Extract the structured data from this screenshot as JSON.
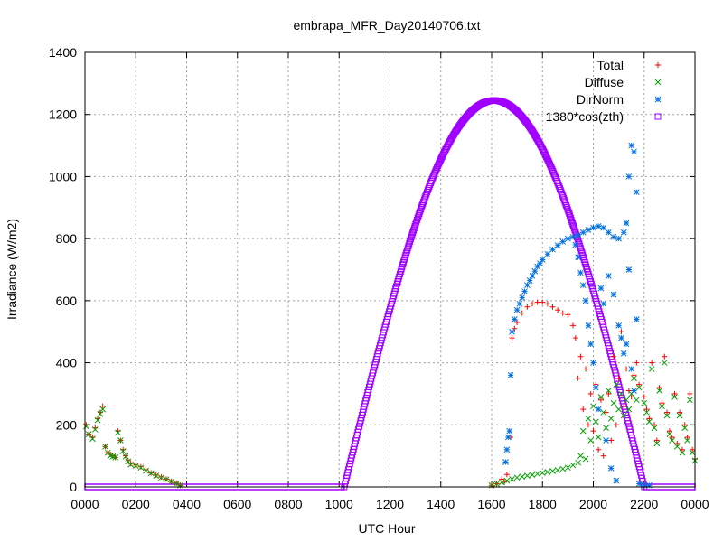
{
  "chart_data": {
    "type": "scatter",
    "title": "embrapa_MFR_Day20140706.txt",
    "xlabel": "UTC Hour",
    "ylabel": "Irradiance (W/m2)",
    "xlim": [
      0,
      24
    ],
    "ylim": [
      0,
      1400
    ],
    "xticks": [
      {
        "value": 0,
        "label": "0000"
      },
      {
        "value": 2,
        "label": "0200"
      },
      {
        "value": 4,
        "label": "0400"
      },
      {
        "value": 6,
        "label": "0600"
      },
      {
        "value": 8,
        "label": "0800"
      },
      {
        "value": 10,
        "label": "1000"
      },
      {
        "value": 12,
        "label": "1200"
      },
      {
        "value": 14,
        "label": "1400"
      },
      {
        "value": 16,
        "label": "1600"
      },
      {
        "value": 18,
        "label": "1800"
      },
      {
        "value": 20,
        "label": "2000"
      },
      {
        "value": 22,
        "label": "2200"
      },
      {
        "value": 24,
        "label": "0000"
      }
    ],
    "yticks": [
      0,
      200,
      400,
      600,
      800,
      1000,
      1200,
      1400
    ],
    "grid": true,
    "legend_position": "top-right",
    "series": [
      {
        "name": "Total",
        "marker": "plus",
        "color": "#ff0000",
        "points": [
          [
            0.05,
            200
          ],
          [
            0.15,
            170
          ],
          [
            0.3,
            160
          ],
          [
            0.4,
            190
          ],
          [
            0.5,
            220
          ],
          [
            0.6,
            240
          ],
          [
            0.7,
            260
          ],
          [
            0.8,
            130
          ],
          [
            0.9,
            110
          ],
          [
            1.0,
            105
          ],
          [
            1.1,
            100
          ],
          [
            1.2,
            95
          ],
          [
            1.3,
            180
          ],
          [
            1.4,
            150
          ],
          [
            1.5,
            120
          ],
          [
            1.6,
            100
          ],
          [
            1.7,
            85
          ],
          [
            1.8,
            75
          ],
          [
            2.0,
            70
          ],
          [
            2.2,
            65
          ],
          [
            2.4,
            55
          ],
          [
            2.6,
            45
          ],
          [
            2.8,
            38
          ],
          [
            3.0,
            32
          ],
          [
            3.2,
            25
          ],
          [
            3.4,
            18
          ],
          [
            3.6,
            12
          ],
          [
            3.75,
            5
          ],
          [
            16.0,
            5
          ],
          [
            16.2,
            10
          ],
          [
            16.4,
            25
          ],
          [
            16.5,
            15
          ],
          [
            16.6,
            40
          ],
          [
            16.75,
            160
          ],
          [
            16.8,
            480
          ],
          [
            16.9,
            510
          ],
          [
            17.0,
            530
          ],
          [
            17.2,
            560
          ],
          [
            17.4,
            580
          ],
          [
            17.6,
            590
          ],
          [
            17.8,
            595
          ],
          [
            18.0,
            595
          ],
          [
            18.2,
            590
          ],
          [
            18.4,
            580
          ],
          [
            18.6,
            570
          ],
          [
            18.8,
            560
          ],
          [
            19.0,
            555
          ],
          [
            19.2,
            520
          ],
          [
            19.3,
            480
          ],
          [
            19.4,
            350
          ],
          [
            19.5,
            420
          ],
          [
            19.6,
            250
          ],
          [
            19.7,
            380
          ],
          [
            19.8,
            200
          ],
          [
            19.9,
            300
          ],
          [
            20.0,
            180
          ],
          [
            20.1,
            330
          ],
          [
            20.2,
            120
          ],
          [
            20.3,
            280
          ],
          [
            20.4,
            100
          ],
          [
            20.5,
            240
          ],
          [
            20.6,
            300
          ],
          [
            20.7,
            150
          ],
          [
            20.8,
            420
          ],
          [
            20.9,
            200
          ],
          [
            21.0,
            350
          ],
          [
            21.1,
            500
          ],
          [
            21.2,
            260
          ],
          [
            21.3,
            380
          ],
          [
            21.4,
            310
          ],
          [
            21.5,
            290
          ],
          [
            21.6,
            360
          ],
          [
            21.7,
            400
          ],
          [
            21.8,
            330
          ],
          [
            22.0,
            290
          ],
          [
            22.1,
            250
          ],
          [
            22.2,
            220
          ],
          [
            22.3,
            400
          ],
          [
            22.4,
            200
          ],
          [
            22.5,
            150
          ],
          [
            22.6,
            320
          ],
          [
            22.7,
            270
          ],
          [
            22.8,
            420
          ],
          [
            22.9,
            240
          ],
          [
            23.0,
            180
          ],
          [
            23.1,
            160
          ],
          [
            23.2,
            300
          ],
          [
            23.3,
            140
          ],
          [
            23.4,
            240
          ],
          [
            23.5,
            120
          ],
          [
            23.6,
            200
          ],
          [
            23.7,
            160
          ],
          [
            23.8,
            300
          ],
          [
            23.9,
            120
          ],
          [
            24.0,
            90
          ]
        ]
      },
      {
        "name": "Diffuse",
        "marker": "cross",
        "color": "#00a000",
        "points": [
          [
            0.05,
            195
          ],
          [
            0.15,
            170
          ],
          [
            0.3,
            155
          ],
          [
            0.4,
            185
          ],
          [
            0.5,
            215
          ],
          [
            0.6,
            235
          ],
          [
            0.7,
            250
          ],
          [
            0.8,
            130
          ],
          [
            0.9,
            110
          ],
          [
            1.0,
            100
          ],
          [
            1.1,
            98
          ],
          [
            1.2,
            95
          ],
          [
            1.3,
            175
          ],
          [
            1.4,
            150
          ],
          [
            1.5,
            115
          ],
          [
            1.6,
            98
          ],
          [
            1.7,
            82
          ],
          [
            1.8,
            72
          ],
          [
            2.0,
            68
          ],
          [
            2.2,
            62
          ],
          [
            2.4,
            52
          ],
          [
            2.6,
            44
          ],
          [
            2.8,
            36
          ],
          [
            3.0,
            30
          ],
          [
            3.2,
            24
          ],
          [
            3.4,
            17
          ],
          [
            3.6,
            11
          ],
          [
            3.75,
            5
          ],
          [
            16.0,
            5
          ],
          [
            16.2,
            10
          ],
          [
            16.4,
            15
          ],
          [
            16.6,
            20
          ],
          [
            16.8,
            25
          ],
          [
            17.0,
            30
          ],
          [
            17.2,
            33
          ],
          [
            17.4,
            36
          ],
          [
            17.6,
            39
          ],
          [
            17.8,
            42
          ],
          [
            18.0,
            45
          ],
          [
            18.2,
            48
          ],
          [
            18.4,
            51
          ],
          [
            18.6,
            54
          ],
          [
            18.8,
            58
          ],
          [
            19.0,
            62
          ],
          [
            19.2,
            70
          ],
          [
            19.4,
            78
          ],
          [
            19.5,
            100
          ],
          [
            19.6,
            180
          ],
          [
            19.7,
            90
          ],
          [
            19.8,
            220
          ],
          [
            19.9,
            150
          ],
          [
            20.0,
            260
          ],
          [
            20.1,
            210
          ],
          [
            20.2,
            160
          ],
          [
            20.3,
            290
          ],
          [
            20.4,
            240
          ],
          [
            20.5,
            190
          ],
          [
            20.6,
            310
          ],
          [
            20.7,
            220
          ],
          [
            20.8,
            270
          ],
          [
            20.9,
            330
          ],
          [
            21.0,
            250
          ],
          [
            21.1,
            300
          ],
          [
            21.2,
            230
          ],
          [
            21.3,
            280
          ],
          [
            21.4,
            250
          ],
          [
            21.5,
            300
          ],
          [
            21.6,
            350
          ],
          [
            21.7,
            280
          ],
          [
            21.8,
            320
          ],
          [
            22.0,
            270
          ],
          [
            22.1,
            240
          ],
          [
            22.2,
            210
          ],
          [
            22.3,
            380
          ],
          [
            22.4,
            190
          ],
          [
            22.5,
            140
          ],
          [
            22.6,
            310
          ],
          [
            22.7,
            260
          ],
          [
            22.8,
            400
          ],
          [
            22.9,
            230
          ],
          [
            23.0,
            170
          ],
          [
            23.1,
            150
          ],
          [
            23.2,
            290
          ],
          [
            23.3,
            130
          ],
          [
            23.4,
            230
          ],
          [
            23.5,
            110
          ],
          [
            23.6,
            190
          ],
          [
            23.7,
            150
          ],
          [
            23.8,
            280
          ],
          [
            23.9,
            110
          ],
          [
            24.0,
            85
          ]
        ]
      },
      {
        "name": "DirNorm",
        "marker": "star",
        "color": "#0070e0",
        "points": [
          [
            16.55,
            80
          ],
          [
            16.6,
            120
          ],
          [
            16.65,
            160
          ],
          [
            16.7,
            180
          ],
          [
            16.75,
            360
          ],
          [
            16.8,
            500
          ],
          [
            16.9,
            540
          ],
          [
            17.0,
            570
          ],
          [
            17.1,
            590
          ],
          [
            17.2,
            610
          ],
          [
            17.3,
            630
          ],
          [
            17.4,
            650
          ],
          [
            17.5,
            665
          ],
          [
            17.6,
            680
          ],
          [
            17.7,
            695
          ],
          [
            17.8,
            710
          ],
          [
            17.9,
            720
          ],
          [
            18.0,
            732
          ],
          [
            18.2,
            750
          ],
          [
            18.4,
            765
          ],
          [
            18.6,
            778
          ],
          [
            18.8,
            790
          ],
          [
            19.0,
            800
          ],
          [
            19.2,
            805
          ],
          [
            19.4,
            810
          ],
          [
            19.6,
            820
          ],
          [
            19.8,
            828
          ],
          [
            20.0,
            835
          ],
          [
            20.2,
            840
          ],
          [
            20.4,
            835
          ],
          [
            20.6,
            820
          ],
          [
            20.8,
            805
          ],
          [
            21.0,
            800
          ],
          [
            21.2,
            820
          ],
          [
            21.3,
            850
          ],
          [
            21.4,
            1000
          ],
          [
            21.5,
            1100
          ],
          [
            21.6,
            1080
          ],
          [
            21.7,
            950
          ],
          [
            19.3,
            780
          ],
          [
            19.4,
            740
          ],
          [
            19.5,
            690
          ],
          [
            19.6,
            650
          ],
          [
            19.7,
            600
          ],
          [
            19.8,
            520
          ],
          [
            19.9,
            460
          ],
          [
            20.0,
            400
          ],
          [
            20.1,
            320
          ],
          [
            20.2,
            250
          ],
          [
            20.3,
            640
          ],
          [
            20.4,
            590
          ],
          [
            20.5,
            150
          ],
          [
            20.6,
            680
          ],
          [
            20.7,
            60
          ],
          [
            20.8,
            620
          ],
          [
            20.9,
            20
          ],
          [
            21.0,
            520
          ],
          [
            21.1,
            480
          ],
          [
            21.2,
            430
          ],
          [
            21.3,
            460
          ],
          [
            21.4,
            700
          ],
          [
            21.5,
            380
          ],
          [
            21.6,
            310
          ],
          [
            21.7,
            540
          ],
          [
            21.8,
            10
          ],
          [
            22.0,
            5
          ],
          [
            22.2,
            5
          ]
        ]
      },
      {
        "name": "1380*cos(zth)",
        "marker": "square",
        "color": "#a000ff",
        "curve": {
          "x_start": 10.2,
          "x_end": 22.0,
          "y_peak": 1245
        },
        "baseline": {
          "y": 0,
          "segments": [
            [
              0,
              10.2
            ],
            [
              22.0,
              24.0
            ]
          ]
        }
      }
    ]
  }
}
